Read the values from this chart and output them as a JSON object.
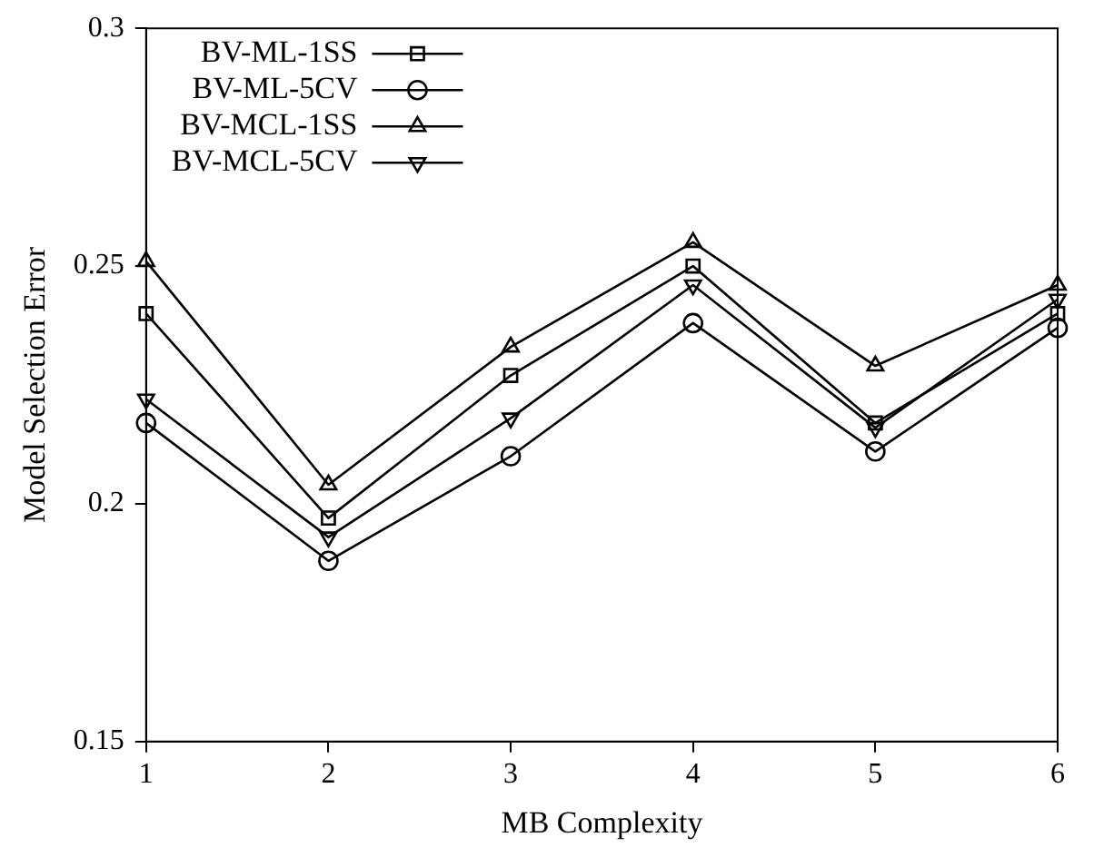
{
  "chart_data": {
    "type": "line",
    "xlabel": "MB Complexity",
    "ylabel": "Model Selection Error",
    "x": [
      1,
      2,
      3,
      4,
      5,
      6
    ],
    "series": [
      {
        "name": "BV-ML-1SS",
        "color": "#000000",
        "marker": "square",
        "values": [
          0.24,
          0.197,
          0.227,
          0.25,
          0.217,
          0.24
        ]
      },
      {
        "name": "BV-ML-5CV",
        "color": "#000000",
        "marker": "circle",
        "values": [
          0.217,
          0.188,
          0.21,
          0.238,
          0.211,
          0.237
        ]
      },
      {
        "name": "BV-MCL-1SS",
        "color": "#000000",
        "marker": "triangle",
        "values": [
          0.251,
          0.204,
          0.233,
          0.255,
          0.229,
          0.246
        ]
      },
      {
        "name": "BV-MCL-5CV",
        "color": "#000000",
        "marker": "triangle_down",
        "values": [
          0.222,
          0.193,
          0.218,
          0.246,
          0.216,
          0.243
        ]
      }
    ],
    "xlim": [
      1,
      6
    ],
    "xticks": [
      1,
      2,
      3,
      4,
      5,
      6
    ],
    "ylim": [
      0.15,
      0.3
    ],
    "yticks": [
      0.15,
      0.2,
      0.25,
      0.3
    ],
    "grid": false,
    "legend": "top left",
    "line_style": "solid"
  }
}
